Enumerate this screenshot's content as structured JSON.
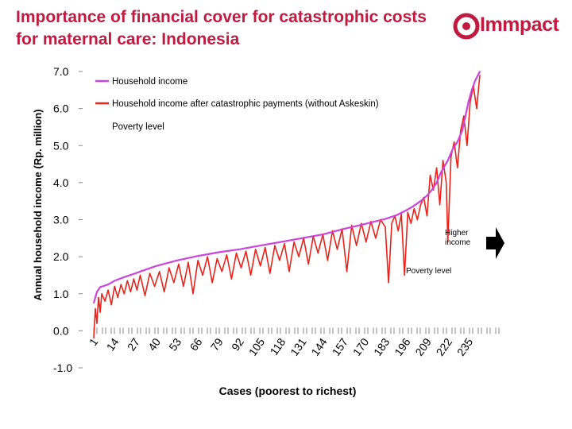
{
  "header": {
    "title": "Importance of financial cover for catastrophic costs for maternal care: Indonesia",
    "logo_text": "Immpact"
  },
  "colors": {
    "title": "#c01a40",
    "household_income": "#cc44dd",
    "after_payments": "#e8231a",
    "logo": "#c01a40"
  },
  "chart_data": {
    "type": "line",
    "title": "",
    "xlabel": "Cases (poorest to richest)",
    "ylabel": "Annual household income (Rp. million)",
    "ylim": [
      -1.0,
      7.0
    ],
    "yticks": [
      "7.0",
      "6.0",
      "5.0",
      "4.0",
      "3.0",
      "2.0",
      "1.0",
      "0.0",
      "-1.0"
    ],
    "ytick_values": [
      7,
      6,
      5,
      4,
      3,
      2,
      1,
      0,
      -1
    ],
    "xlim": [
      1,
      242
    ],
    "xticks": [
      "1",
      "14",
      "27",
      "40",
      "53",
      "66",
      "79",
      "92",
      "105",
      "118",
      "131",
      "144",
      "157",
      "170",
      "183",
      "196",
      "209",
      "222",
      "235"
    ],
    "xtick_values": [
      1,
      14,
      27,
      40,
      53,
      66,
      79,
      92,
      105,
      118,
      131,
      144,
      157,
      170,
      183,
      196,
      209,
      222,
      235
    ],
    "legend": [
      {
        "label": "Household income",
        "series": "household_income"
      },
      {
        "label": "Household income after catastrophic payments (without Askeskin)",
        "series": "after_payments"
      },
      {
        "label": "Poverty level",
        "series": "poverty_level"
      }
    ],
    "series": [
      {
        "name": "household_income",
        "label": "Household income",
        "x": [
          1,
          3,
          5,
          10,
          14,
          20,
          27,
          30,
          40,
          53,
          66,
          79,
          92,
          105,
          118,
          131,
          144,
          157,
          170,
          183,
          190,
          196,
          200,
          205,
          209,
          212,
          215,
          218,
          222,
          225,
          228,
          231,
          233,
          235,
          237,
          239,
          242
        ],
        "values": [
          0.75,
          1.05,
          1.18,
          1.25,
          1.35,
          1.45,
          1.55,
          1.6,
          1.75,
          1.9,
          2.02,
          2.12,
          2.2,
          2.3,
          2.4,
          2.5,
          2.6,
          2.75,
          2.88,
          3.02,
          3.12,
          3.25,
          3.35,
          3.5,
          3.65,
          3.8,
          4.0,
          4.3,
          4.6,
          4.9,
          5.1,
          5.4,
          5.8,
          6.2,
          6.5,
          6.75,
          7.0
        ]
      },
      {
        "name": "after_payments",
        "label": "Household income after catastrophic payments (without Askeskin)",
        "x": [
          1,
          2,
          3,
          4,
          5,
          6,
          8,
          10,
          12,
          14,
          16,
          18,
          20,
          22,
          24,
          26,
          28,
          30,
          33,
          36,
          39,
          42,
          45,
          48,
          51,
          54,
          57,
          60,
          63,
          66,
          69,
          72,
          75,
          78,
          81,
          84,
          87,
          90,
          93,
          96,
          99,
          102,
          105,
          108,
          111,
          114,
          117,
          120,
          123,
          126,
          129,
          132,
          135,
          138,
          141,
          144,
          147,
          150,
          153,
          156,
          159,
          162,
          165,
          168,
          171,
          174,
          177,
          180,
          183,
          185,
          187,
          189,
          191,
          193,
          195,
          197,
          199,
          201,
          203,
          205,
          207,
          209,
          211,
          213,
          215,
          217,
          219,
          221,
          222,
          224,
          226,
          228,
          230,
          232,
          234,
          236,
          238,
          240,
          242
        ],
        "values": [
          -0.2,
          0.6,
          0.2,
          0.9,
          0.5,
          1.0,
          0.8,
          1.1,
          0.7,
          1.2,
          0.9,
          1.25,
          1.0,
          1.35,
          1.05,
          1.4,
          1.1,
          1.5,
          0.95,
          1.55,
          1.2,
          1.6,
          1.05,
          1.7,
          1.3,
          1.8,
          1.2,
          1.85,
          1.0,
          1.9,
          1.5,
          2.0,
          1.3,
          1.95,
          1.6,
          2.05,
          1.4,
          2.1,
          1.7,
          2.15,
          1.5,
          2.2,
          1.75,
          2.25,
          1.55,
          2.3,
          1.9,
          2.35,
          1.6,
          2.4,
          2.0,
          2.5,
          1.8,
          2.55,
          2.1,
          2.6,
          1.9,
          2.7,
          2.2,
          2.75,
          1.6,
          2.85,
          2.3,
          2.9,
          2.4,
          2.95,
          2.5,
          3.0,
          2.8,
          1.3,
          2.9,
          3.1,
          2.7,
          3.15,
          1.5,
          3.2,
          2.9,
          3.3,
          3.0,
          3.4,
          3.6,
          3.1,
          4.2,
          3.8,
          4.4,
          3.4,
          4.6,
          4.0,
          2.4,
          4.7,
          5.1,
          4.4,
          5.4,
          5.8,
          5.0,
          6.2,
          6.6,
          6.0,
          6.9
        ]
      },
      {
        "name": "poverty_level",
        "label": "Poverty level",
        "x": [
          1,
          242
        ],
        "values": [
          0.0,
          0.0
        ]
      }
    ],
    "annotations": {
      "higher_income": "Higher income",
      "poverty_level": "Poverty level"
    }
  }
}
